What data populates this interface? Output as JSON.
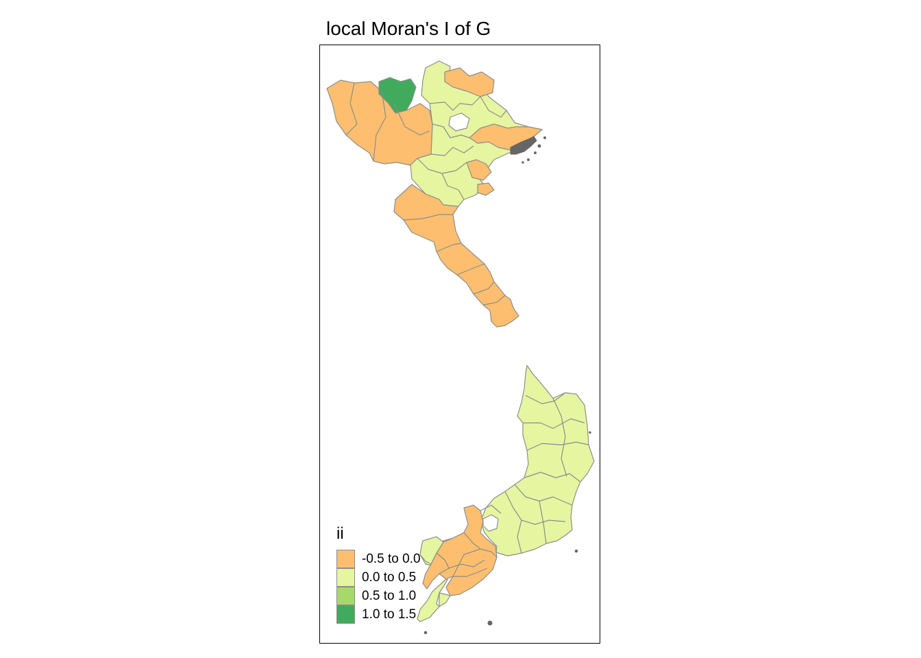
{
  "title": "local Moran's I of G",
  "legend": {
    "title": "ii",
    "classes": [
      {
        "label": "-0.5 to 0.0",
        "color": "#fdbf6f"
      },
      {
        "label": "0.0 to 0.5",
        "color": "#e6f5a0"
      },
      {
        "label": "0.5 to 1.0",
        "color": "#a6d96a"
      },
      {
        "label": "1.0 to 1.5",
        "color": "#41ab5d"
      }
    ]
  },
  "colors": {
    "border": "#8c8c8c",
    "frame": "#000000",
    "islands": "#666666"
  }
}
